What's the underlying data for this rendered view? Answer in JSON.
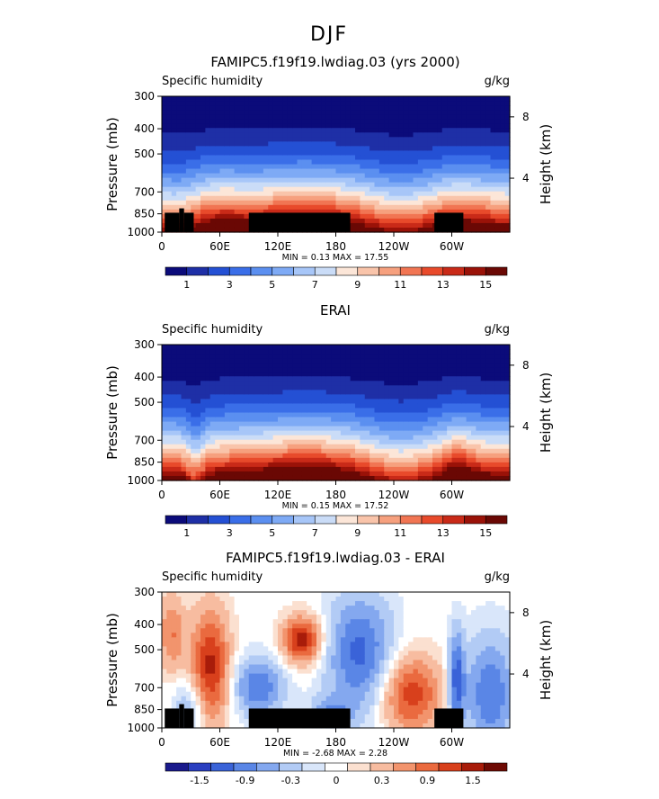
{
  "figure_title": "DJF",
  "colors": {
    "sequential": [
      "#0b0b7a",
      "#1e2fa6",
      "#2450d4",
      "#3a6ee8",
      "#5b8ff0",
      "#7eaaf5",
      "#a7c6f8",
      "#cadcf7",
      "#fce6d8",
      "#f9c4aa",
      "#f6a07e",
      "#f17553",
      "#e84a2b",
      "#c92a18",
      "#9a1208",
      "#6a0804"
    ],
    "diverging": [
      "#1a1a8c",
      "#2a3fc0",
      "#3a63d8",
      "#5a86e6",
      "#84a8ef",
      "#b2cbf5",
      "#d9e6fa",
      "#ffffff",
      "#fbe0d0",
      "#f7bca0",
      "#f2946d",
      "#ea6a3f",
      "#d8401c",
      "#a81c0a",
      "#6e0a04"
    ],
    "land": "#000000"
  },
  "chart_data": [
    {
      "type": "heatmap",
      "title": "FAMIPC5.f19f19.lwdiag.03 (yrs 2000)",
      "left_label": "Specific humidity",
      "right_label": "g/kg",
      "ylabel": "Pressure (mb)",
      "y2label": "Height (km)",
      "y_ticks": [
        "300",
        "400",
        "500",
        "700",
        "850",
        "1000"
      ],
      "y2_ticks": [
        "8",
        "4"
      ],
      "x_ticks": [
        "0",
        "60E",
        "120E",
        "180",
        "120W",
        "60W"
      ],
      "stats": "MIN =    0.13   MAX =   17.55",
      "colorbar_ticks": [
        "1",
        "3",
        "5",
        "7",
        "9",
        "11",
        "13",
        "15"
      ],
      "ylim": [
        1000,
        300
      ],
      "xlim": [
        0,
        360
      ],
      "land": true,
      "field": "model"
    },
    {
      "type": "heatmap",
      "title": "ERAI",
      "left_label": "Specific humidity",
      "right_label": "g/kg",
      "ylabel": "Pressure (mb)",
      "y2label": "Height (km)",
      "y_ticks": [
        "300",
        "400",
        "500",
        "700",
        "850",
        "1000"
      ],
      "y2_ticks": [
        "8",
        "4"
      ],
      "x_ticks": [
        "0",
        "60E",
        "120E",
        "180",
        "120W",
        "60W"
      ],
      "stats": "MIN =    0.15   MAX =   17.52",
      "colorbar_ticks": [
        "1",
        "3",
        "5",
        "7",
        "9",
        "11",
        "13",
        "15"
      ],
      "ylim": [
        1000,
        300
      ],
      "xlim": [
        0,
        360
      ],
      "land": false,
      "field": "obs"
    },
    {
      "type": "heatmap",
      "title": "FAMIPC5.f19f19.lwdiag.03 - ERAI",
      "left_label": "Specific humidity",
      "right_label": "g/kg",
      "ylabel": "Pressure (mb)",
      "y2label": "Height (km)",
      "y_ticks": [
        "300",
        "400",
        "500",
        "700",
        "850",
        "1000"
      ],
      "y2_ticks": [
        "8",
        "4"
      ],
      "x_ticks": [
        "0",
        "60E",
        "120E",
        "180",
        "120W",
        "60W"
      ],
      "stats": "MIN =   -2.68   MAX =    2.28",
      "colorbar_ticks": [
        "-1.5",
        "-0.9",
        "-0.3",
        "0",
        "0.3",
        "0.9",
        "1.5"
      ],
      "ylim": [
        1000,
        300
      ],
      "xlim": [
        0,
        360
      ],
      "land": true,
      "field": "diff"
    }
  ]
}
